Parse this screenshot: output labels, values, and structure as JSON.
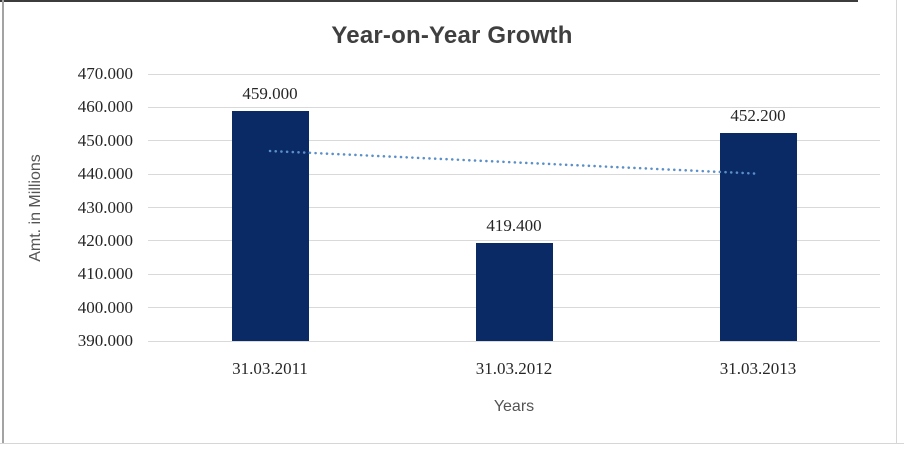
{
  "chart_data": {
    "type": "bar",
    "title": "Year-on-Year Growth",
    "xlabel": "Years",
    "ylabel": "Amt. in Millions",
    "categories": [
      "31.03.2011",
      "31.03.2012",
      "31.03.2013"
    ],
    "values": [
      459.0,
      419.4,
      452.2
    ],
    "value_labels": [
      "459.000",
      "419.400",
      "452.200"
    ],
    "y_ticks": [
      390,
      400,
      410,
      420,
      430,
      440,
      450,
      460,
      470
    ],
    "y_tick_labels": [
      "390.000",
      "400.000",
      "410.000",
      "420.000",
      "430.000",
      "440.000",
      "450.000",
      "460.000",
      "470.000"
    ],
    "ylim": [
      390,
      470
    ],
    "grid": true,
    "legend": "none",
    "trendline": {
      "type": "linear",
      "style": "dotted"
    }
  },
  "colors": {
    "bar": "#0a2a66",
    "trendline": "#5b8fc9",
    "gridline": "#d9d9d9",
    "title_text": "#3f3f3f",
    "tick_text": "#262626",
    "axis_title_text": "#545454",
    "border_top": "#3c3c3c",
    "border_left": "#a3a3a3",
    "border_light": "#d6d6d6",
    "background": "#ffffff"
  }
}
